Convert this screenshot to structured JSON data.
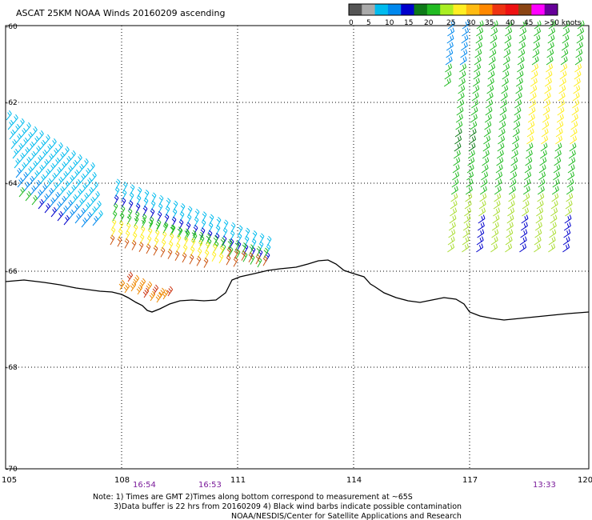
{
  "title": "ASCAT 25KM NOAA Winds 20160209 ascending",
  "legend": {
    "bins": [
      {
        "label": "0",
        "color": "#555555"
      },
      {
        "label": "",
        "color": "#aaaaaa"
      },
      {
        "label": "5",
        "color": "#00bbee"
      },
      {
        "label": "",
        "color": "#0088ee"
      },
      {
        "label": "10",
        "color": "#0000cc"
      },
      {
        "label": "",
        "color": "#0e7a18"
      },
      {
        "label": "15",
        "color": "#22bb22"
      },
      {
        "label": "",
        "color": "#aaee22"
      },
      {
        "label": "20",
        "color": "#ffee22"
      },
      {
        "label": "",
        "color": "#ffbb11"
      },
      {
        "label": "25",
        "color": "#ff8800"
      },
      {
        "label": "",
        "color": "#ee3311"
      },
      {
        "label": "30",
        "color": "#ee1111"
      },
      {
        "label": "",
        "color": "#dd2255"
      },
      {
        "label": "35",
        "color": "#8b4513"
      },
      {
        "label": "",
        "color": "#552200"
      },
      {
        "label": "40",
        "color": "#ff00ff"
      },
      {
        "label": "45",
        "color": "#aa00ee"
      },
      {
        "label": ">50 knots",
        "color": "#660099"
      }
    ]
  },
  "axes": {
    "lat_labels": [
      "-60",
      "-62",
      "-64",
      "-66",
      "-68",
      "-70"
    ],
    "lon_labels": [
      "105",
      "108",
      "111",
      "114",
      "117",
      "120"
    ]
  },
  "pass_times": [
    "16:54",
    "16:53",
    "13:33"
  ],
  "notes": [
    "Note: 1) Times are GMT 2)Times along bottom correspond to measurement at ~65S",
    "3)Data buffer is 22 hrs from 20160209 4) Black wind barbs indicate possible contamination",
    "NOAA/NESDIS/Center for Satellite Applications and Research"
  ],
  "colors": {
    "time_label": "#7a1a9a",
    "grid": "#000000",
    "coast": "#000000"
  }
}
